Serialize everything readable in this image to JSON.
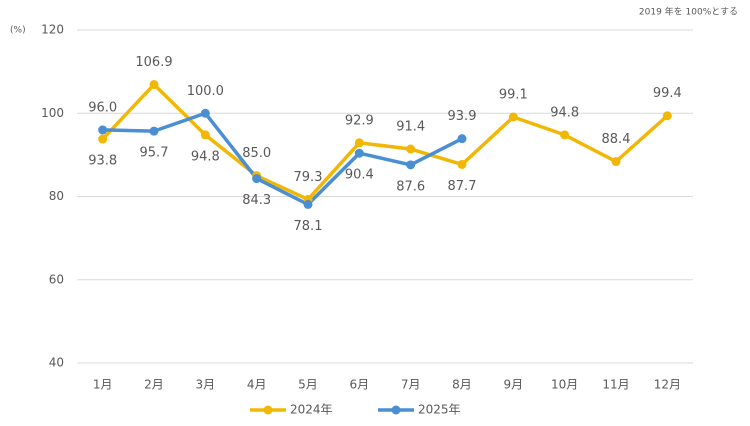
{
  "chart_data": {
    "type": "line",
    "annotation": "2019 年を 100%とする",
    "y_label": "(%)",
    "categories": [
      "1月",
      "2月",
      "3月",
      "4月",
      "5月",
      "6月",
      "7月",
      "8月",
      "9月",
      "10月",
      "11月",
      "12月"
    ],
    "series": [
      {
        "name": "2024年",
        "color": "#f2b705",
        "values": [
          93.8,
          106.9,
          94.8,
          85.0,
          79.3,
          92.9,
          91.4,
          87.7,
          99.1,
          94.8,
          88.4,
          99.4
        ]
      },
      {
        "name": "2025年",
        "color": "#4a8fd4",
        "values": [
          96.0,
          95.7,
          100.0,
          84.3,
          78.1,
          90.4,
          87.6,
          93.9,
          null,
          null,
          null,
          null
        ]
      }
    ],
    "value_labels": [
      [
        "93.8",
        "106.9",
        "94.8",
        "85.0",
        "79.3",
        "92.9",
        "91.4",
        "87.7",
        "99.1",
        "94.8",
        "88.4",
        "99.4"
      ],
      [
        "96.0",
        "95.7",
        "100.0",
        "84.3",
        "78.1",
        "90.4",
        "87.6",
        "93.9",
        null,
        null,
        null,
        null
      ]
    ],
    "ylim": [
      40,
      120
    ],
    "yticks": [
      40,
      60,
      80,
      100,
      120
    ],
    "grid": true,
    "legend": "bottom"
  }
}
